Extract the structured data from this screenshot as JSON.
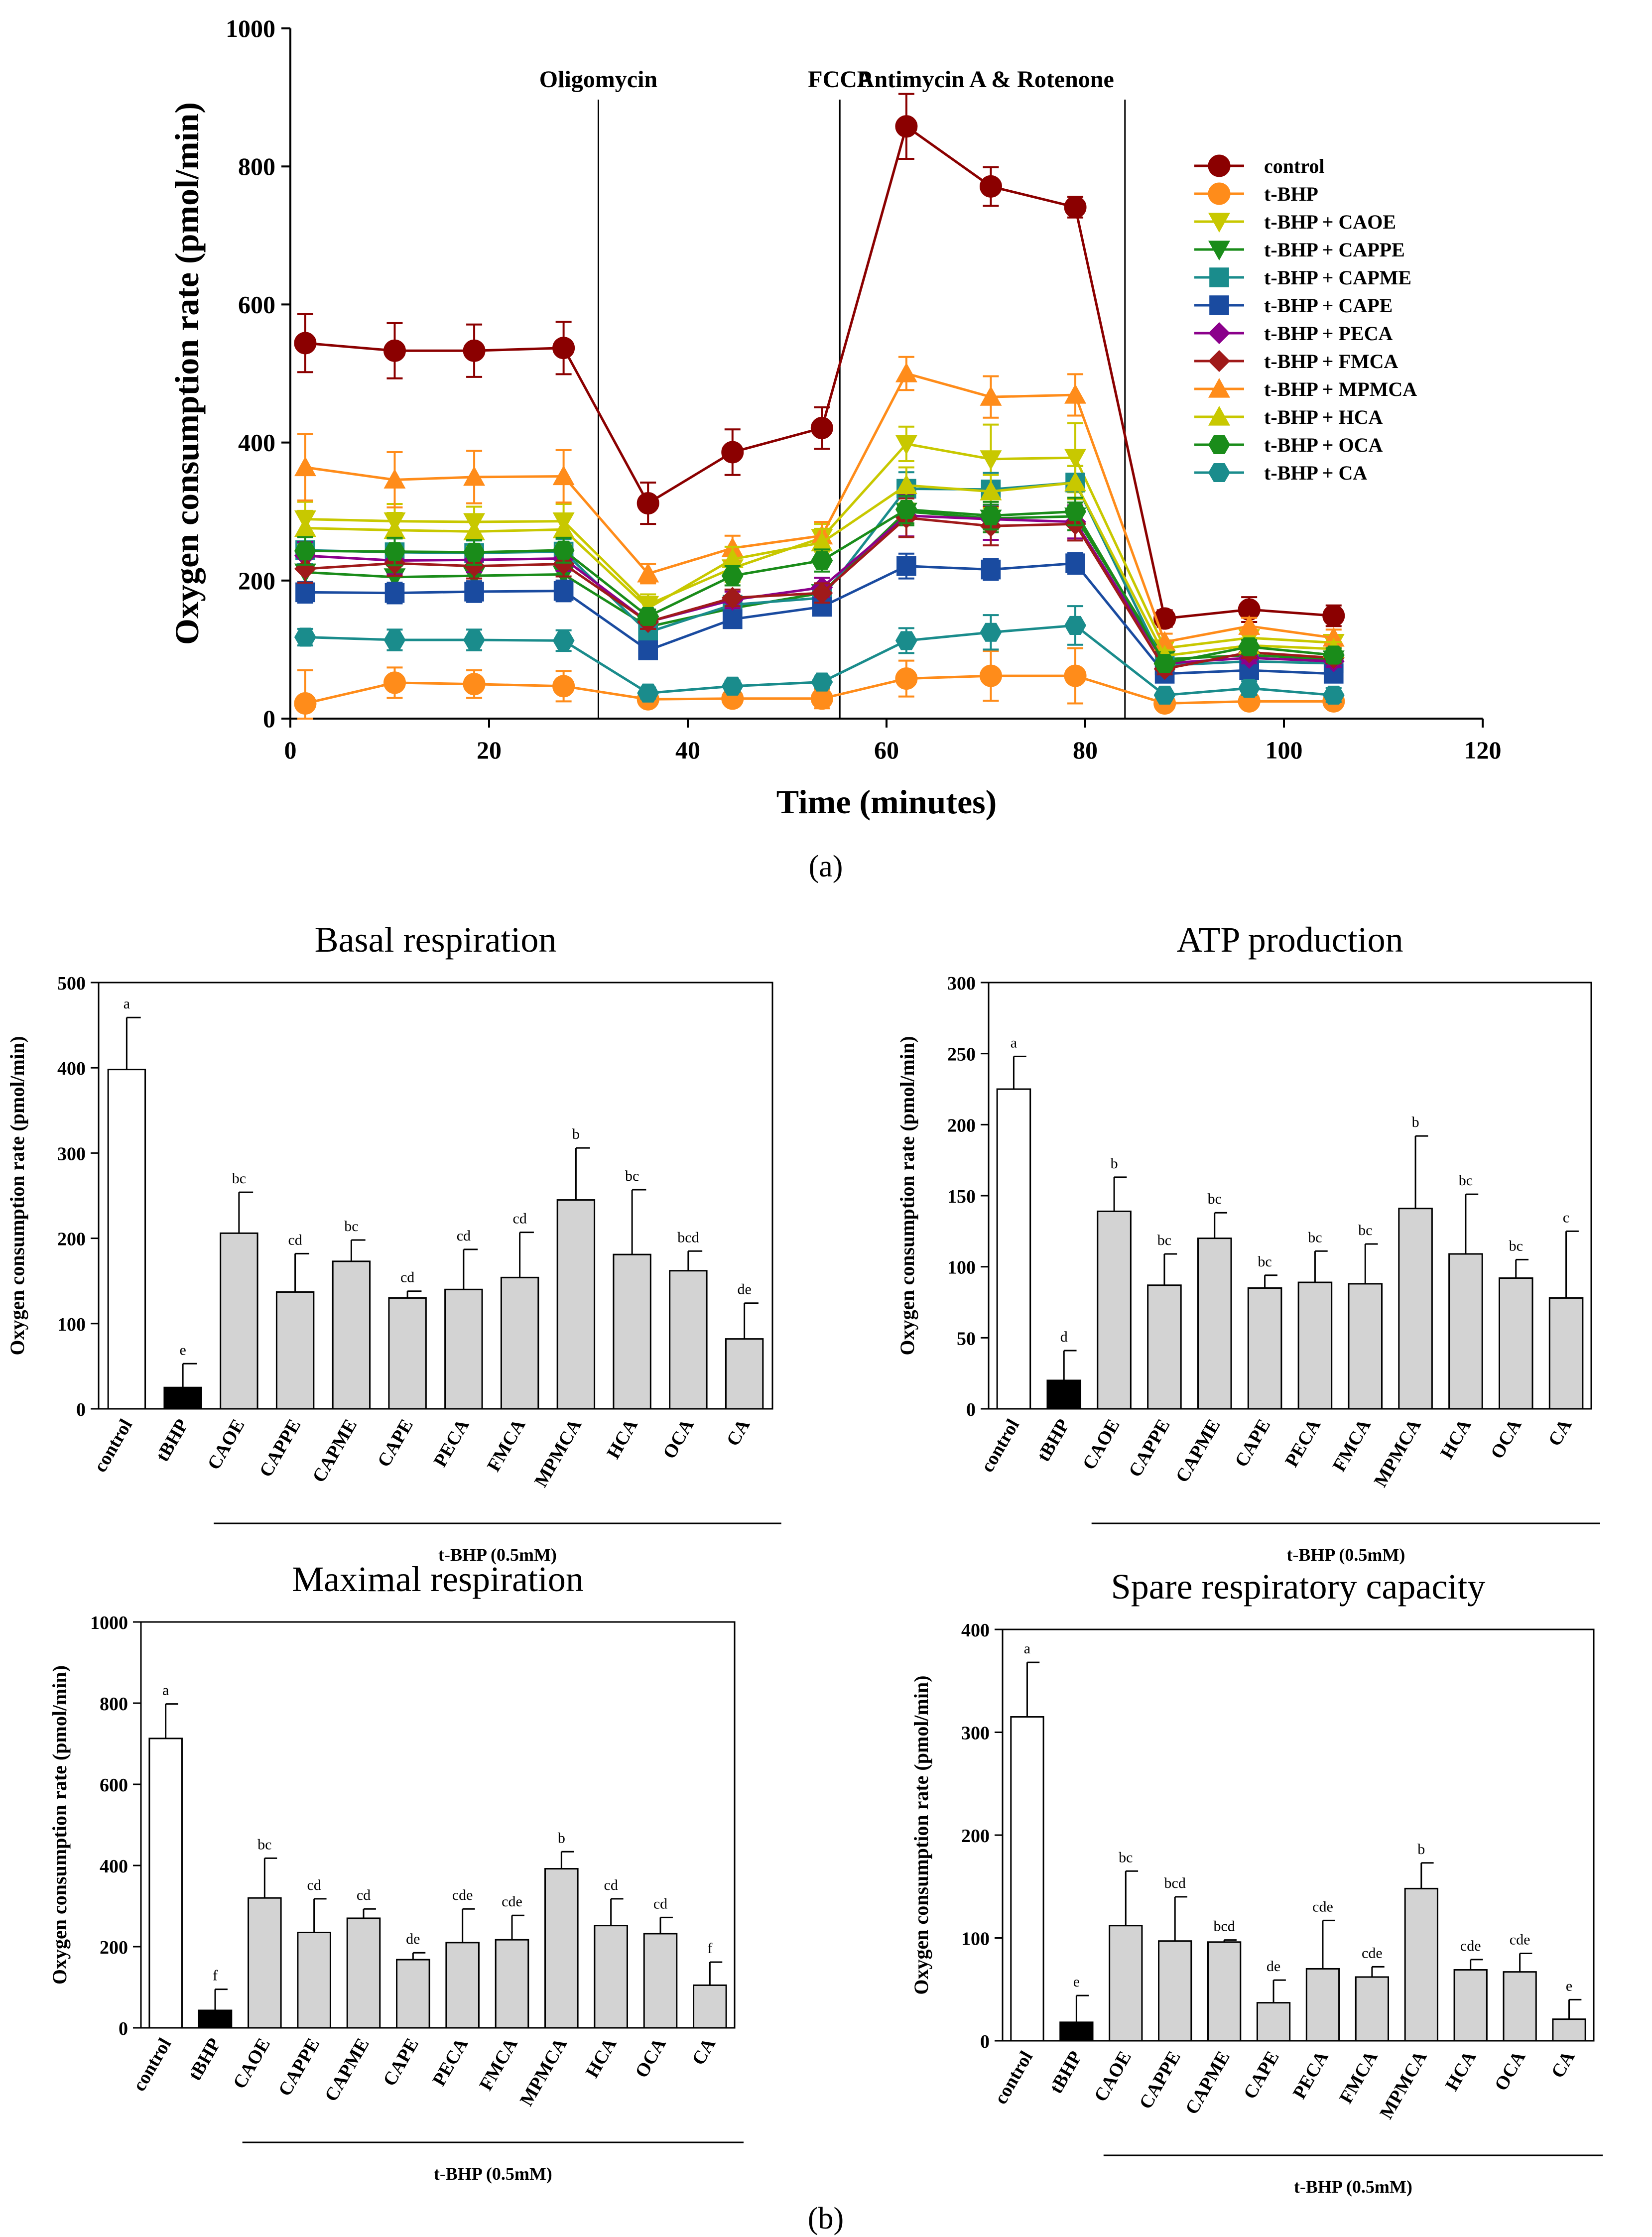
{
  "panel_labels": {
    "a": "a",
    "b": "b"
  },
  "bar_colors": {
    "control": "#ffffff",
    "tBHP": "#000000",
    "treated": "#d3d3d3"
  },
  "chart_data": [
    {
      "type": "line",
      "id": "ocr_timecourse",
      "xlabel": "Time (minutes)",
      "ylabel": "Oxygen consumption rate (pmol/min)",
      "xlim": [
        0,
        120
      ],
      "ylim": [
        0,
        1000
      ],
      "xticks": [
        "0",
        "20",
        "40",
        "60",
        "80",
        "100",
        "120"
      ],
      "yticks": [
        "0",
        "200",
        "400",
        "600",
        "800",
        "1000"
      ],
      "injections": [
        {
          "label": "Oligomycin",
          "x": 31
        },
        {
          "label": "FCCP",
          "x": 55.3
        },
        {
          "label": "Antimycin A & Rotenone",
          "x": 84
        }
      ],
      "x": [
        1.5,
        10.5,
        18.5,
        27.5,
        36,
        44.5,
        53.5,
        62,
        70.5,
        79,
        88,
        96.5,
        105
      ],
      "series": [
        {
          "name": "control",
          "color": "#8b0000",
          "marker": "circle",
          "values": [
            544,
            533,
            533,
            537,
            312,
            386,
            421,
            858,
            771,
            741,
            145,
            158,
            149
          ],
          "errors": [
            42,
            40,
            38,
            38,
            30,
            33,
            30,
            47,
            28,
            15,
            12,
            18,
            15
          ]
        },
        {
          "name": "t-BHP",
          "color": "#ff8c1a",
          "marker": "circle",
          "values": [
            22,
            52,
            50,
            47,
            28,
            29,
            29,
            58,
            62,
            62,
            22,
            25,
            25
          ],
          "errors": [
            48,
            22,
            20,
            22,
            10,
            10,
            14,
            26,
            36,
            40,
            10,
            10,
            8
          ]
        },
        {
          "name": "t-BHP + CAOE",
          "color": "#c8c800",
          "marker": "triangle-down",
          "values": [
            289,
            286,
            285,
            286,
            165,
            218,
            262,
            398,
            376,
            378,
            102,
            117,
            110
          ],
          "errors": [
            25,
            25,
            22,
            25,
            15,
            20,
            20,
            25,
            50,
            50,
            10,
            10,
            10
          ]
        },
        {
          "name": "t-BHP + CAPPE",
          "color": "#1a8c1a",
          "marker": "triangle-down",
          "values": [
            212,
            205,
            207,
            209,
            133,
            160,
            182,
            300,
            290,
            293,
            86,
            92,
            86
          ],
          "errors": [
            20,
            18,
            18,
            18,
            10,
            12,
            14,
            20,
            20,
            20,
            8,
            8,
            8
          ]
        },
        {
          "name": "t-BHP + CAPME",
          "color": "#1a8c8c",
          "marker": "square",
          "values": [
            244,
            241,
            240,
            242,
            125,
            165,
            175,
            333,
            332,
            342,
            77,
            83,
            80
          ],
          "errors": [
            20,
            20,
            18,
            18,
            10,
            12,
            12,
            24,
            24,
            24,
            8,
            8,
            8
          ]
        },
        {
          "name": "t-BHP + CAPE",
          "color": "#1a4ba0",
          "marker": "square",
          "values": [
            183,
            182,
            184,
            185,
            99,
            144,
            162,
            221,
            216,
            225,
            65,
            70,
            65
          ],
          "errors": [
            15,
            15,
            15,
            15,
            10,
            12,
            12,
            18,
            15,
            15,
            6,
            6,
            6
          ]
        },
        {
          "name": "t-BHP + PECA",
          "color": "#8b008b",
          "marker": "diamond",
          "values": [
            236,
            229,
            230,
            232,
            140,
            172,
            190,
            294,
            289,
            285,
            80,
            88,
            83
          ],
          "errors": [
            20,
            20,
            18,
            18,
            10,
            12,
            14,
            30,
            30,
            24,
            8,
            8,
            8
          ]
        },
        {
          "name": "t-BHP + FMCA",
          "color": "#a01a1a",
          "marker": "diamond",
          "values": [
            217,
            225,
            221,
            224,
            140,
            175,
            182,
            291,
            279,
            282,
            72,
            96,
            88
          ],
          "errors": [
            20,
            18,
            18,
            18,
            10,
            12,
            14,
            28,
            28,
            24,
            8,
            8,
            8
          ]
        },
        {
          "name": "t-BHP + MPMCA",
          "color": "#ff8c1a",
          "marker": "triangle-up",
          "values": [
            364,
            346,
            350,
            351,
            210,
            247,
            265,
            500,
            466,
            469,
            111,
            134,
            117
          ],
          "errors": [
            48,
            40,
            38,
            38,
            14,
            18,
            20,
            24,
            30,
            30,
            12,
            12,
            12
          ]
        },
        {
          "name": "t-BHP + HCA",
          "color": "#c8c800",
          "marker": "triangle-up",
          "values": [
            276,
            273,
            271,
            274,
            160,
            231,
            255,
            338,
            329,
            342,
            91,
            106,
            101
          ],
          "errors": [
            25,
            25,
            22,
            22,
            12,
            18,
            20,
            26,
            24,
            24,
            8,
            10,
            10
          ]
        },
        {
          "name": "t-BHP + OCA",
          "color": "#1a8c1a",
          "marker": "hexagon",
          "values": [
            243,
            242,
            241,
            244,
            148,
            207,
            229,
            303,
            294,
            300,
            80,
            104,
            92
          ],
          "errors": [
            20,
            20,
            18,
            18,
            10,
            14,
            16,
            20,
            20,
            20,
            8,
            10,
            10
          ]
        },
        {
          "name": "t-BHP + CA",
          "color": "#1a8c8c",
          "marker": "hexagon",
          "values": [
            118,
            114,
            114,
            113,
            37,
            47,
            53,
            113,
            125,
            135,
            34,
            44,
            34
          ],
          "errors": [
            12,
            15,
            15,
            15,
            8,
            8,
            8,
            18,
            25,
            28,
            6,
            10,
            10
          ]
        }
      ]
    },
    {
      "type": "bar",
      "id": "basal_respiration",
      "title": "Basal respiration",
      "ylabel": "Oxygen consumption rate (pmol/min)",
      "group_label": "t-BHP (0.5mM)",
      "ylim": [
        0,
        500
      ],
      "yticks": [
        "0",
        "100",
        "200",
        "300",
        "400",
        "500"
      ],
      "categories": [
        "control",
        "tBHP",
        "CAOE",
        "CAPPE",
        "CAPME",
        "CAPE",
        "PECA",
        "FMCA",
        "MPMCA",
        "HCA",
        "OCA",
        "CA"
      ],
      "values": [
        398,
        25,
        206,
        137,
        173,
        130,
        140,
        154,
        245,
        181,
        162,
        82
      ],
      "errors": [
        61,
        28,
        48,
        45,
        25,
        8,
        47,
        53,
        61,
        76,
        23,
        42
      ],
      "letters": [
        "a",
        "e",
        "bc",
        "cd",
        "bc",
        "cd",
        "cd",
        "cd",
        "b",
        "bc",
        "bcd",
        "de"
      ]
    },
    {
      "type": "bar",
      "id": "atp_production",
      "title": "ATP production",
      "ylabel": "Oxygen consumption rate (pmol/min)",
      "group_label": "t-BHP (0.5mM)",
      "ylim": [
        0,
        300
      ],
      "yticks": [
        "0",
        "50",
        "100",
        "150",
        "200",
        "250",
        "300"
      ],
      "categories": [
        "control",
        "tBHP",
        "CAOE",
        "CAPPE",
        "CAPME",
        "CAPE",
        "PECA",
        "FMCA",
        "MPMCA",
        "HCA",
        "OCA",
        "CA"
      ],
      "values": [
        225,
        20,
        139,
        87,
        120,
        85,
        89,
        88,
        141,
        109,
        92,
        78
      ],
      "errors": [
        23,
        21,
        24,
        22,
        18,
        9,
        22,
        28,
        51,
        42,
        13,
        47
      ],
      "letters": [
        "a",
        "d",
        "b",
        "bc",
        "bc",
        "bc",
        "bc",
        "bc",
        "b",
        "bc",
        "bc",
        "c"
      ]
    },
    {
      "type": "bar",
      "id": "maximal_respiration",
      "title": "Maximal respiration",
      "ylabel": "Oxygen consumption rate (pmol/min)",
      "group_label": "t-BHP (0.5mM)",
      "ylim": [
        0,
        1000
      ],
      "yticks": [
        "0",
        "200",
        "400",
        "600",
        "800",
        "1000"
      ],
      "categories": [
        "control",
        "tBHP",
        "CAOE",
        "CAPPE",
        "CAPME",
        "CAPE",
        "PECA",
        "FMCA",
        "MPMCA",
        "HCA",
        "OCA",
        "CA"
      ],
      "values": [
        713,
        43,
        320,
        235,
        270,
        168,
        210,
        217,
        392,
        252,
        232,
        105
      ],
      "errors": [
        85,
        52,
        98,
        83,
        23,
        17,
        83,
        60,
        42,
        66,
        40,
        57
      ],
      "letters": [
        "a",
        "f",
        "bc",
        "cd",
        "cd",
        "de",
        "cde",
        "cde",
        "b",
        "cd",
        "cd",
        "f"
      ]
    },
    {
      "type": "bar",
      "id": "spare_respiratory_capacity",
      "title": "Spare respiratory capacity",
      "ylabel": "Oxygen consumption rate (pmol/min)",
      "group_label": "t-BHP (0.5mM)",
      "ylim": [
        0,
        400
      ],
      "yticks": [
        "0",
        "100",
        "200",
        "300",
        "400"
      ],
      "categories": [
        "control",
        "tBHP",
        "CAOE",
        "CAPPE",
        "CAPME",
        "CAPE",
        "PECA",
        "FMCA",
        "MPMCA",
        "HCA",
        "OCA",
        "CA"
      ],
      "values": [
        315,
        18,
        112,
        97,
        96,
        37,
        70,
        62,
        148,
        69,
        67,
        21
      ],
      "errors": [
        53,
        26,
        53,
        43,
        2,
        22,
        47,
        10,
        25,
        10,
        18,
        19
      ],
      "letters": [
        "a",
        "e",
        "bc",
        "bcd",
        "bcd",
        "de",
        "cde",
        "cde",
        "b",
        "cde",
        "cde",
        "e"
      ]
    }
  ]
}
